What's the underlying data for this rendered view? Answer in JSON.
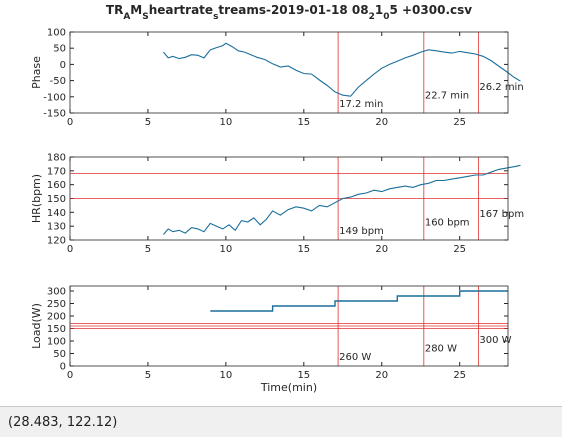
{
  "chart_data": [
    {
      "type": "line",
      "title": [
        "TR",
        "A",
        "M",
        "S",
        "heartrate",
        "s",
        "treams-2019-01-18 08",
        "2",
        "1",
        "0",
        "5 +0300.csv"
      ],
      "ylabel": "Phase",
      "xlim": [
        0,
        28.1
      ],
      "xticks": [
        0,
        5,
        10,
        15,
        20,
        25
      ],
      "ylim": [
        -150,
        100
      ],
      "yticks": [
        -150,
        -100,
        -50,
        0,
        50,
        100
      ],
      "series": [
        {
          "color": "#1b6f9c",
          "x": [
            6,
            6.3,
            6.6,
            7,
            7.4,
            7.8,
            8.2,
            8.6,
            9,
            9.4,
            9.8,
            10,
            10.4,
            10.8,
            11.2,
            11.6,
            12,
            12.5,
            13,
            13.5,
            14,
            14.5,
            15,
            15.5,
            16,
            16.5,
            17,
            17.5,
            18,
            18.5,
            19,
            19.5,
            20,
            20.5,
            21,
            21.5,
            22,
            22.5,
            23,
            23.5,
            24,
            24.5,
            25,
            25.5,
            26,
            26.5,
            27,
            27.5,
            28,
            28.5,
            28.9
          ],
          "values": [
            38,
            20,
            25,
            18,
            22,
            30,
            28,
            20,
            45,
            52,
            58,
            65,
            55,
            42,
            38,
            30,
            22,
            15,
            2,
            -8,
            -5,
            -18,
            -28,
            -30,
            -48,
            -65,
            -85,
            -95,
            -98,
            -70,
            -50,
            -30,
            -12,
            0,
            10,
            20,
            28,
            38,
            45,
            42,
            38,
            35,
            40,
            36,
            32,
            25,
            12,
            -5,
            -22,
            -40,
            -52
          ]
        }
      ],
      "vlines": [
        17.2,
        22.7,
        26.2
      ],
      "annotations": [
        "17.2 min",
        "22.7 min",
        "26.2 min"
      ],
      "annotation_color": "#d42020"
    },
    {
      "type": "line",
      "ylabel": "HR(bpm)",
      "xlim": [
        0,
        28.1
      ],
      "xticks": [
        0,
        5,
        10,
        15,
        20,
        25
      ],
      "ylim": [
        120,
        180
      ],
      "yticks": [
        120,
        130,
        140,
        150,
        160,
        170,
        180
      ],
      "series": [
        {
          "color": "#1b6f9c",
          "x": [
            6,
            6.3,
            6.6,
            7,
            7.4,
            7.8,
            8.2,
            8.6,
            9,
            9.4,
            9.8,
            10.2,
            10.6,
            11,
            11.4,
            11.8,
            12.2,
            12.6,
            13,
            13.5,
            14,
            14.5,
            15,
            15.5,
            16,
            16.5,
            17,
            17.5,
            18,
            18.5,
            19,
            19.5,
            20,
            20.5,
            21,
            21.5,
            22,
            22.5,
            23,
            23.5,
            24,
            24.5,
            25,
            25.5,
            26,
            26.5,
            27,
            27.5,
            28,
            28.5,
            28.9
          ],
          "values": [
            124,
            128,
            126,
            127,
            125,
            129,
            128,
            126,
            132,
            130,
            128,
            131,
            127,
            134,
            133,
            136,
            131,
            135,
            141,
            138,
            142,
            144,
            143,
            141,
            145,
            144,
            147,
            150,
            151,
            153,
            154,
            156,
            155,
            157,
            158,
            159,
            158,
            160,
            161,
            163,
            163,
            164,
            165,
            166,
            167,
            167,
            169,
            171,
            172,
            173,
            174
          ]
        }
      ],
      "hlines": [
        150,
        168
      ],
      "vlines": [
        17.2,
        22.7,
        26.2
      ],
      "annotations": [
        "149 bpm",
        "160 bpm",
        "167 bpm"
      ],
      "annotation_color": "#1a1a8c"
    },
    {
      "type": "line",
      "ylabel": "Load(W)",
      "xlabel": "Time(min)",
      "xlim": [
        0,
        28.1
      ],
      "xticks": [
        0,
        5,
        10,
        15,
        20,
        25
      ],
      "ylim": [
        0,
        320
      ],
      "yticks": [
        0,
        50,
        100,
        150,
        200,
        250,
        300
      ],
      "series": [
        {
          "color": "#1b6f9c",
          "x": [
            9,
            13,
            13,
            17,
            17,
            21,
            21,
            25,
            25,
            28.1
          ],
          "values": [
            220,
            220,
            240,
            240,
            260,
            260,
            280,
            280,
            300,
            300
          ]
        }
      ],
      "hlines": [
        150,
        160,
        170
      ],
      "vlines": [
        17.2,
        22.7,
        26.2
      ],
      "annotations": [
        "260 W",
        "280 W",
        "300 W"
      ],
      "annotation_color": "#1a1a8c"
    }
  ],
  "status_bar": "(28.483, 122.12)"
}
